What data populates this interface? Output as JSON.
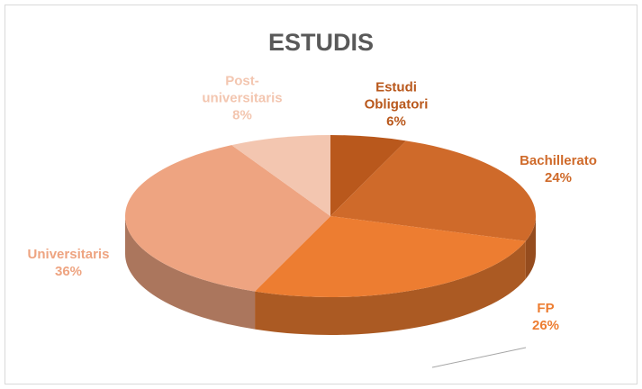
{
  "chart_data": {
    "type": "pie3d",
    "title": "ESTUDIS",
    "categories": [
      "Estudi Obligatori",
      "Bachillerato",
      "FP",
      "Universitaris",
      "Post-universitaris"
    ],
    "values": [
      6,
      24,
      26,
      36,
      8
    ],
    "value_labels": [
      "6%",
      "24%",
      "26%",
      "36%",
      "8%"
    ],
    "colors": [
      "#b9581c",
      "#cf6a2a",
      "#ed7d31",
      "#eea481",
      "#f3c6b0"
    ]
  }
}
